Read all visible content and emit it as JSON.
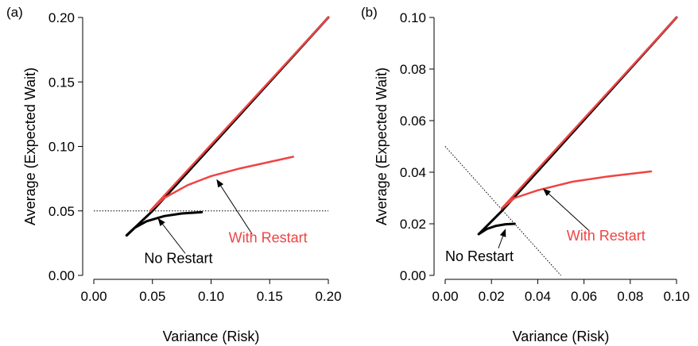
{
  "chart_data": [
    {
      "panel_label": "(a)",
      "type": "line",
      "xlabel": "Variance (Risk)",
      "ylabel": "Average (Expected Wait)",
      "xlim": [
        0.0,
        0.2
      ],
      "ylim": [
        0.0,
        0.2
      ],
      "xticks": [
        "0.00",
        "0.05",
        "0.10",
        "0.15",
        "0.20"
      ],
      "yticks": [
        "0.00",
        "0.05",
        "0.10",
        "0.15",
        "0.20"
      ],
      "xtick_values": [
        0.0,
        0.05,
        0.1,
        0.15,
        0.2
      ],
      "ytick_values": [
        0.0,
        0.05,
        0.1,
        0.15,
        0.2
      ],
      "colors": {
        "black": "#000000",
        "red": "#ee4444"
      },
      "series": [
        {
          "color": "#000000",
          "x": [
            0.028,
            0.05,
            0.2
          ],
          "y": [
            0.031,
            0.05,
            0.2
          ]
        },
        {
          "color": "#000000",
          "x": [
            0.028,
            0.035,
            0.045,
            0.06,
            0.075,
            0.092
          ],
          "y": [
            0.031,
            0.037,
            0.042,
            0.046,
            0.048,
            0.049
          ]
        },
        {
          "color": "#ee4444",
          "x": [
            0.048,
            0.2
          ],
          "y": [
            0.05,
            0.2
          ]
        },
        {
          "color": "#ee4444",
          "x": [
            0.048,
            0.06,
            0.08,
            0.1,
            0.125,
            0.15,
            0.17
          ],
          "y": [
            0.05,
            0.06,
            0.07,
            0.077,
            0.083,
            0.088,
            0.092
          ]
        }
      ],
      "reference_lines": [
        {
          "style": "dotted",
          "x": [
            0.0,
            0.2
          ],
          "y": [
            0.05,
            0.05
          ]
        }
      ],
      "annotations": [
        {
          "text": "With Restart",
          "color": "red",
          "text_x": 0.115,
          "text_y": 0.0255,
          "arrow_from": [
            0.135,
            0.032
          ],
          "arrow_to": [
            0.105,
            0.074
          ]
        },
        {
          "text": "No Restart",
          "color": "black",
          "text_x": 0.043,
          "text_y": 0.0095,
          "arrow_from": [
            0.078,
            0.017
          ],
          "arrow_to": [
            0.055,
            0.044
          ]
        }
      ]
    },
    {
      "panel_label": "(b)",
      "type": "line",
      "xlabel": "Variance (Risk)",
      "ylabel": "Average (Expected Wait)",
      "xlim": [
        0.0,
        0.1
      ],
      "ylim": [
        0.0,
        0.1
      ],
      "xticks": [
        "0.00",
        "0.02",
        "0.04",
        "0.06",
        "0.08",
        "0.10"
      ],
      "yticks": [
        "0.00",
        "0.02",
        "0.04",
        "0.06",
        "0.08",
        "0.10"
      ],
      "xtick_values": [
        0.0,
        0.02,
        0.04,
        0.06,
        0.08,
        0.1
      ],
      "ytick_values": [
        0.0,
        0.02,
        0.04,
        0.06,
        0.08,
        0.1
      ],
      "colors": {
        "black": "#000000",
        "red": "#ee4444"
      },
      "series": [
        {
          "color": "#000000",
          "x": [
            0.0145,
            0.0245,
            0.1
          ],
          "y": [
            0.016,
            0.025,
            0.1
          ]
        },
        {
          "color": "#000000",
          "x": [
            0.0145,
            0.018,
            0.022,
            0.026,
            0.03
          ],
          "y": [
            0.016,
            0.018,
            0.0192,
            0.0198,
            0.02
          ]
        },
        {
          "color": "#ee4444",
          "x": [
            0.0245,
            0.1
          ],
          "y": [
            0.026,
            0.1
          ]
        },
        {
          "color": "#ee4444",
          "x": [
            0.0245,
            0.03,
            0.04,
            0.055,
            0.07,
            0.089
          ],
          "y": [
            0.026,
            0.03,
            0.033,
            0.0363,
            0.0383,
            0.0403
          ]
        }
      ],
      "reference_lines": [
        {
          "style": "dotted",
          "x": [
            0.0,
            0.05
          ],
          "y": [
            0.05,
            0.0
          ]
        }
      ],
      "annotations": [
        {
          "text": "With Restart",
          "color": "red",
          "text_x": 0.0525,
          "text_y": 0.0135,
          "arrow_from": [
            0.062,
            0.0175
          ],
          "arrow_to": [
            0.0425,
            0.0335
          ]
        },
        {
          "text": "No Restart",
          "color": "black",
          "text_x": 0.0,
          "text_y": 0.0055,
          "arrow_from": [
            0.023,
            0.0105
          ],
          "arrow_to": [
            0.026,
            0.0178
          ]
        }
      ]
    }
  ]
}
